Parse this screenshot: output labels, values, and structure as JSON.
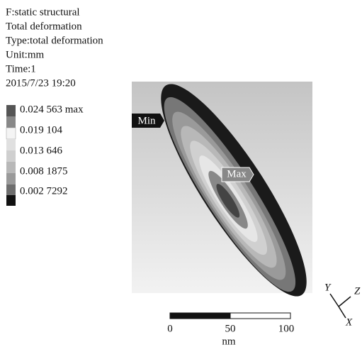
{
  "header": {
    "lines": [
      "F:static structural",
      "Total deformation",
      "Type:total deformation",
      "Unit:mm",
      "Time:1",
      "2015/7/23  19:20"
    ]
  },
  "legend": {
    "labels": [
      "0.024 563 max",
      "0.019 104",
      "0.013 646",
      "0.008 1875",
      "0.002 7292"
    ]
  },
  "annotations": {
    "min": "Min",
    "max": "Max"
  },
  "scale_bar": {
    "labels": [
      "0",
      "50",
      "100"
    ],
    "unit": "nm"
  },
  "triad": {
    "y": "Y",
    "z": "Z",
    "x": "X"
  }
}
